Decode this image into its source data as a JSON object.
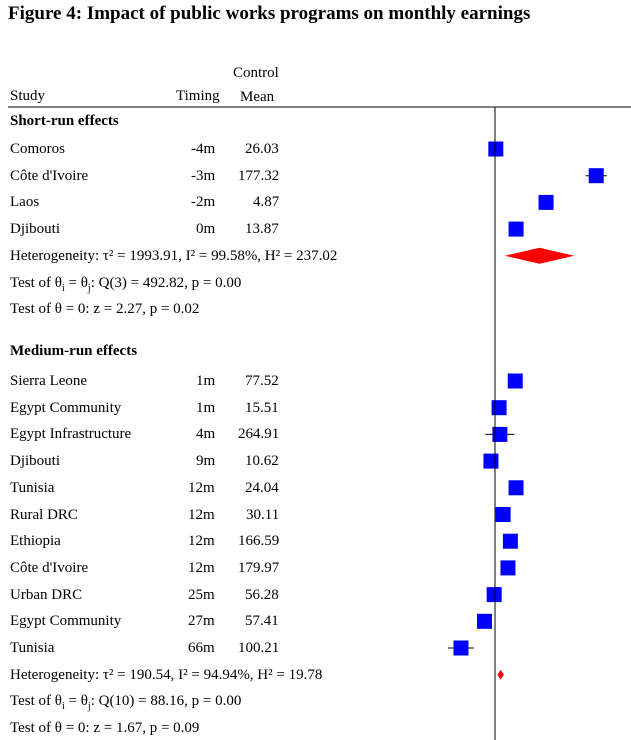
{
  "title": "Figure 4: Impact of public works programs on monthly earnings",
  "columns": {
    "study": "Study",
    "timing": "Timing",
    "control_line1": "Control",
    "control_line2": "Mean"
  },
  "colors": {
    "marker": "#0000ff",
    "diamond": "#ff0000",
    "line": "#000000"
  },
  "chart_data": {
    "type": "forest",
    "title": "Figure 4: Impact of public works programs on monthly earnings",
    "sections": [
      {
        "label": "Short-run effects",
        "studies": [
          {
            "study": "Comoros",
            "timing": "-4m",
            "control_mean": "26.03",
            "estimate": 1.0,
            "ci": [
              0.5,
              1.5
            ],
            "weight": 1.0
          },
          {
            "study": "Côte d'Ivoire",
            "timing": "-3m",
            "control_mean": "177.32",
            "estimate": 125,
            "ci": [
              112,
              138
            ],
            "weight": 1.0
          },
          {
            "study": "Laos",
            "timing": "-2m",
            "control_mean": "4.87",
            "estimate": 63,
            "ci": [
              62,
              64
            ],
            "weight": 1.0
          },
          {
            "study": "Djibouti",
            "timing": "0m",
            "control_mean": "13.87",
            "estimate": 26,
            "ci": [
              25,
              27
            ],
            "weight": 1.0
          }
        ],
        "heterogeneity": "Heterogeneity: τ² = 1993.91, I² = 99.58%, H² = 237.02",
        "test_homog_prefix": "Test of θ",
        "test_homog_suffix": " = θ",
        "test_homog_sub": "i",
        "test_homog_sub2": "j",
        "test_homog_rest": ": Q(3) = 492.82, p = 0.00",
        "test_zero": "Test of θ = 0: z = 2.27, p = 0.02",
        "pooled": {
          "estimate": 55,
          "ci": [
            12,
            98
          ]
        }
      },
      {
        "label": "Medium-run effects",
        "studies": [
          {
            "study": "Sierra Leone",
            "timing": "1m",
            "control_mean": "77.52",
            "estimate": 25,
            "ci": [
              23,
              27
            ],
            "weight": 1.0
          },
          {
            "study": "Egypt Community",
            "timing": "1m",
            "control_mean": "15.51",
            "estimate": 5,
            "ci": [
              2,
              8
            ],
            "weight": 1.0
          },
          {
            "study": "Egypt Infrastructure",
            "timing": "4m",
            "control_mean": "264.91",
            "estimate": 6,
            "ci": [
              -12,
              24
            ],
            "weight": 1.0
          },
          {
            "study": "Djibouti",
            "timing": "9m",
            "control_mean": "10.62",
            "estimate": -5,
            "ci": [
              -6,
              -4
            ],
            "weight": 1.0
          },
          {
            "study": "Tunisia",
            "timing": "12m",
            "control_mean": "24.04",
            "estimate": 26,
            "ci": [
              18,
              34
            ],
            "weight": 1.0
          },
          {
            "study": "Rural DRC",
            "timing": "12m",
            "control_mean": "30.11",
            "estimate": 10,
            "ci": [
              8,
              12
            ],
            "weight": 1.0
          },
          {
            "study": "Ethiopia",
            "timing": "12m",
            "control_mean": "166.59",
            "estimate": 19,
            "ci": [
              12,
              26
            ],
            "weight": 1.0
          },
          {
            "study": "Côte d'Ivoire",
            "timing": "12m",
            "control_mean": "179.97",
            "estimate": 16,
            "ci": [
              9,
              23
            ],
            "weight": 1.0
          },
          {
            "study": "Urban DRC",
            "timing": "25m",
            "control_mean": "56.28",
            "estimate": -1,
            "ci": [
              -2,
              0
            ],
            "weight": 1.0
          },
          {
            "study": "Egypt Community",
            "timing": "27m",
            "control_mean": "57.41",
            "estimate": -13,
            "ci": [
              -15,
              -11
            ],
            "weight": 1.0
          },
          {
            "study": "Tunisia",
            "timing": "66m",
            "control_mean": "100.21",
            "estimate": -42,
            "ci": [
              -58,
              -26
            ],
            "weight": 1.0
          }
        ],
        "heterogeneity": "Heterogeneity: τ² = 190.54, I² = 94.94%, H² = 19.78",
        "test_homog_prefix": "Test of θ",
        "test_homog_suffix": " = θ",
        "test_homog_sub": "i",
        "test_homog_sub2": "j",
        "test_homog_rest": ": Q(10) = 88.16, p = 0.00",
        "test_zero": "Test of θ = 0: z = 1.67, p = 0.09",
        "pooled": {
          "estimate": 7,
          "ci": [
            3,
            11
          ]
        }
      }
    ],
    "xlim": [
      -60,
      160
    ],
    "reference_line": 0
  }
}
